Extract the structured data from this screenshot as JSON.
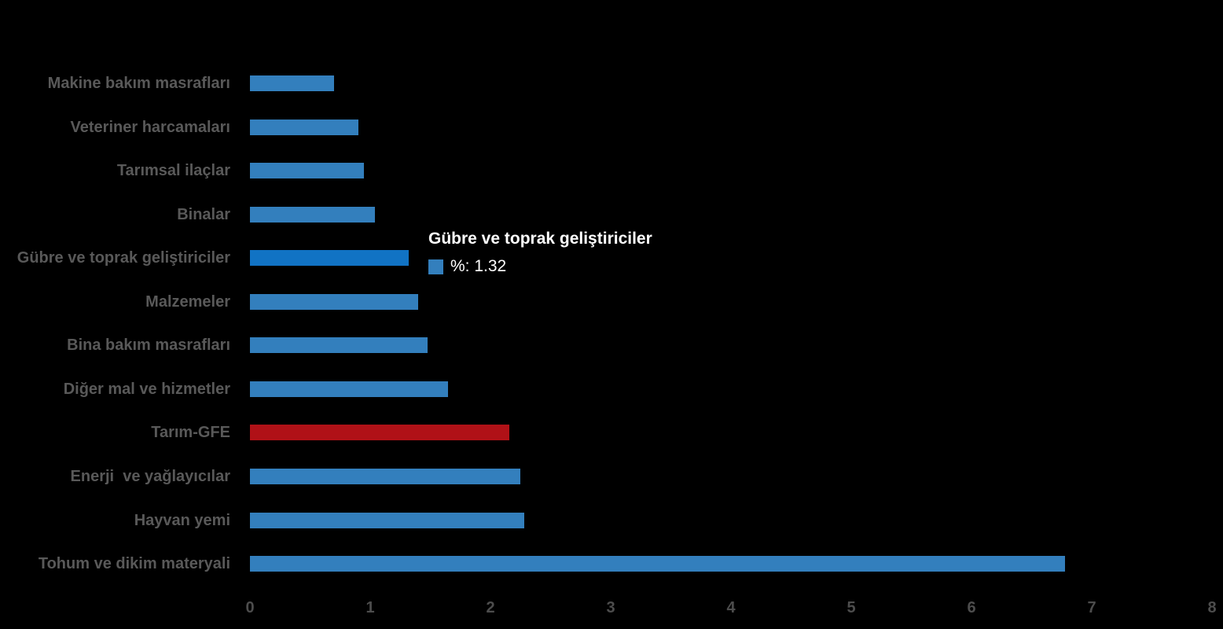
{
  "chart_data": {
    "type": "bar",
    "orientation": "horizontal",
    "title": "",
    "xlabel": "",
    "ylabel": "",
    "categories": [
      "Makine bakım masrafları",
      "Veteriner harcamaları",
      "Tarımsal ilaçlar",
      "Binalar",
      "Gübre ve toprak geliştiriciler",
      "Malzemeler",
      "Bina bakım masrafları",
      "Diğer mal ve hizmetler",
      "Tarım-GFE",
      "Enerji  ve yağlayıcılar",
      "Hayvan yemi",
      "Tohum ve dikim materyali"
    ],
    "values": [
      0.7,
      0.9,
      0.95,
      1.04,
      1.32,
      1.4,
      1.48,
      1.65,
      2.16,
      2.25,
      2.28,
      6.78
    ],
    "bar_colors": [
      "#337fbd",
      "#337fbd",
      "#337fbd",
      "#337fbd",
      "#1173c4",
      "#337fbd",
      "#337fbd",
      "#337fbd",
      "#b01117",
      "#337fbd",
      "#337fbd",
      "#337fbd"
    ],
    "highlighted_category": "Gübre ve toprak geliştiriciler",
    "emphasis_category": "Tarım-GFE",
    "xlim": [
      0,
      8
    ],
    "x_ticks": [
      "0",
      "1",
      "2",
      "3",
      "4",
      "5",
      "6",
      "7",
      "8"
    ],
    "grid": false,
    "legend": "none"
  },
  "tooltip": {
    "title": "Gübre ve toprak geliştiriciler",
    "series_label": "%",
    "value": "1.32",
    "text": "%: 1.32",
    "marker_color": "#337fbd"
  },
  "colors": {
    "background": "#000000",
    "bar_default": "#337fbd",
    "bar_highlight": "#1173c4",
    "bar_emphasis": "#b01117",
    "category_label_text": "#595959",
    "axis_tick_text": "#4d4d4d",
    "tooltip_text": "#ffffff"
  }
}
